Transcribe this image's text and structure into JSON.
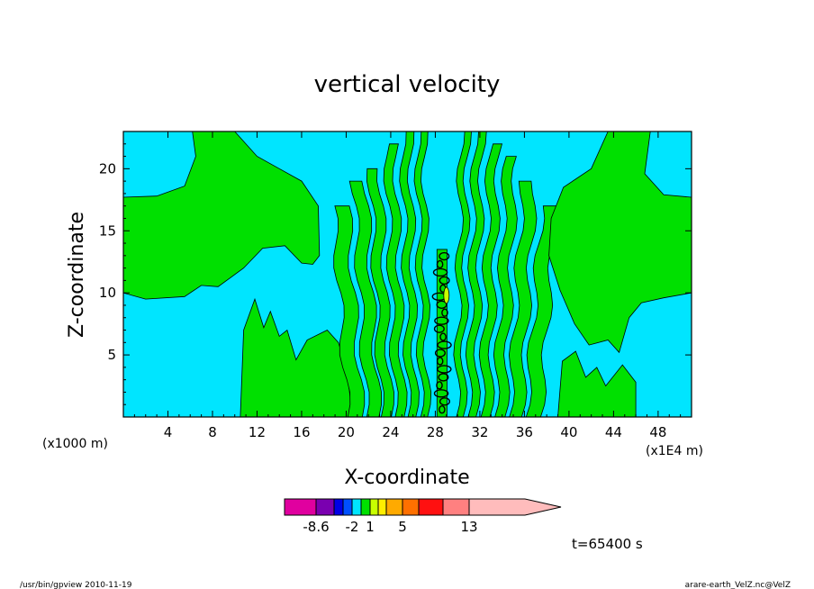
{
  "chart_data": {
    "type": "heatmap",
    "title": "vertical velocity",
    "xlabel": "X-coordinate",
    "ylabel": "Z-coordinate",
    "x_unit_left": "(x1000 m)",
    "x_unit_right": "(x1E4 m)",
    "xlim": [
      0,
      51
    ],
    "ylim": [
      0,
      23
    ],
    "x_ticks": [
      4,
      8,
      12,
      16,
      20,
      24,
      28,
      32,
      36,
      40,
      44,
      48
    ],
    "y_ticks": [
      5,
      10,
      15,
      20
    ],
    "time_label": "t=65400 s",
    "colorbar": {
      "labels": [
        {
          "value": -8.6,
          "text": "-8.6"
        },
        {
          "value": -2,
          "text": "-2"
        },
        {
          "value": 1,
          "text": "1"
        },
        {
          "value": 5,
          "text": "5"
        },
        {
          "value": 13,
          "text": "13"
        }
      ],
      "bins": [
        {
          "color": "#e0009f"
        },
        {
          "color": "#7a00b0"
        },
        {
          "color": "#0000e6"
        },
        {
          "color": "#0050ff"
        },
        {
          "color": "#00e5ff"
        },
        {
          "color": "#00e000"
        },
        {
          "color": "#c8ff00"
        },
        {
          "color": "#ffee00"
        },
        {
          "color": "#ffaa00"
        },
        {
          "color": "#ff7000"
        },
        {
          "color": "#ff1010"
        },
        {
          "color": "#ff8080"
        },
        {
          "color": "#ffbcbc"
        }
      ]
    },
    "field": {
      "background_color": "#00e5ff",
      "contour_color": "#00e000",
      "core_color": "#000000"
    }
  },
  "footer": {
    "left": "/usr/bin/gpview  2010-11-19",
    "right": "arare-earth_VelZ.nc@VelZ"
  }
}
